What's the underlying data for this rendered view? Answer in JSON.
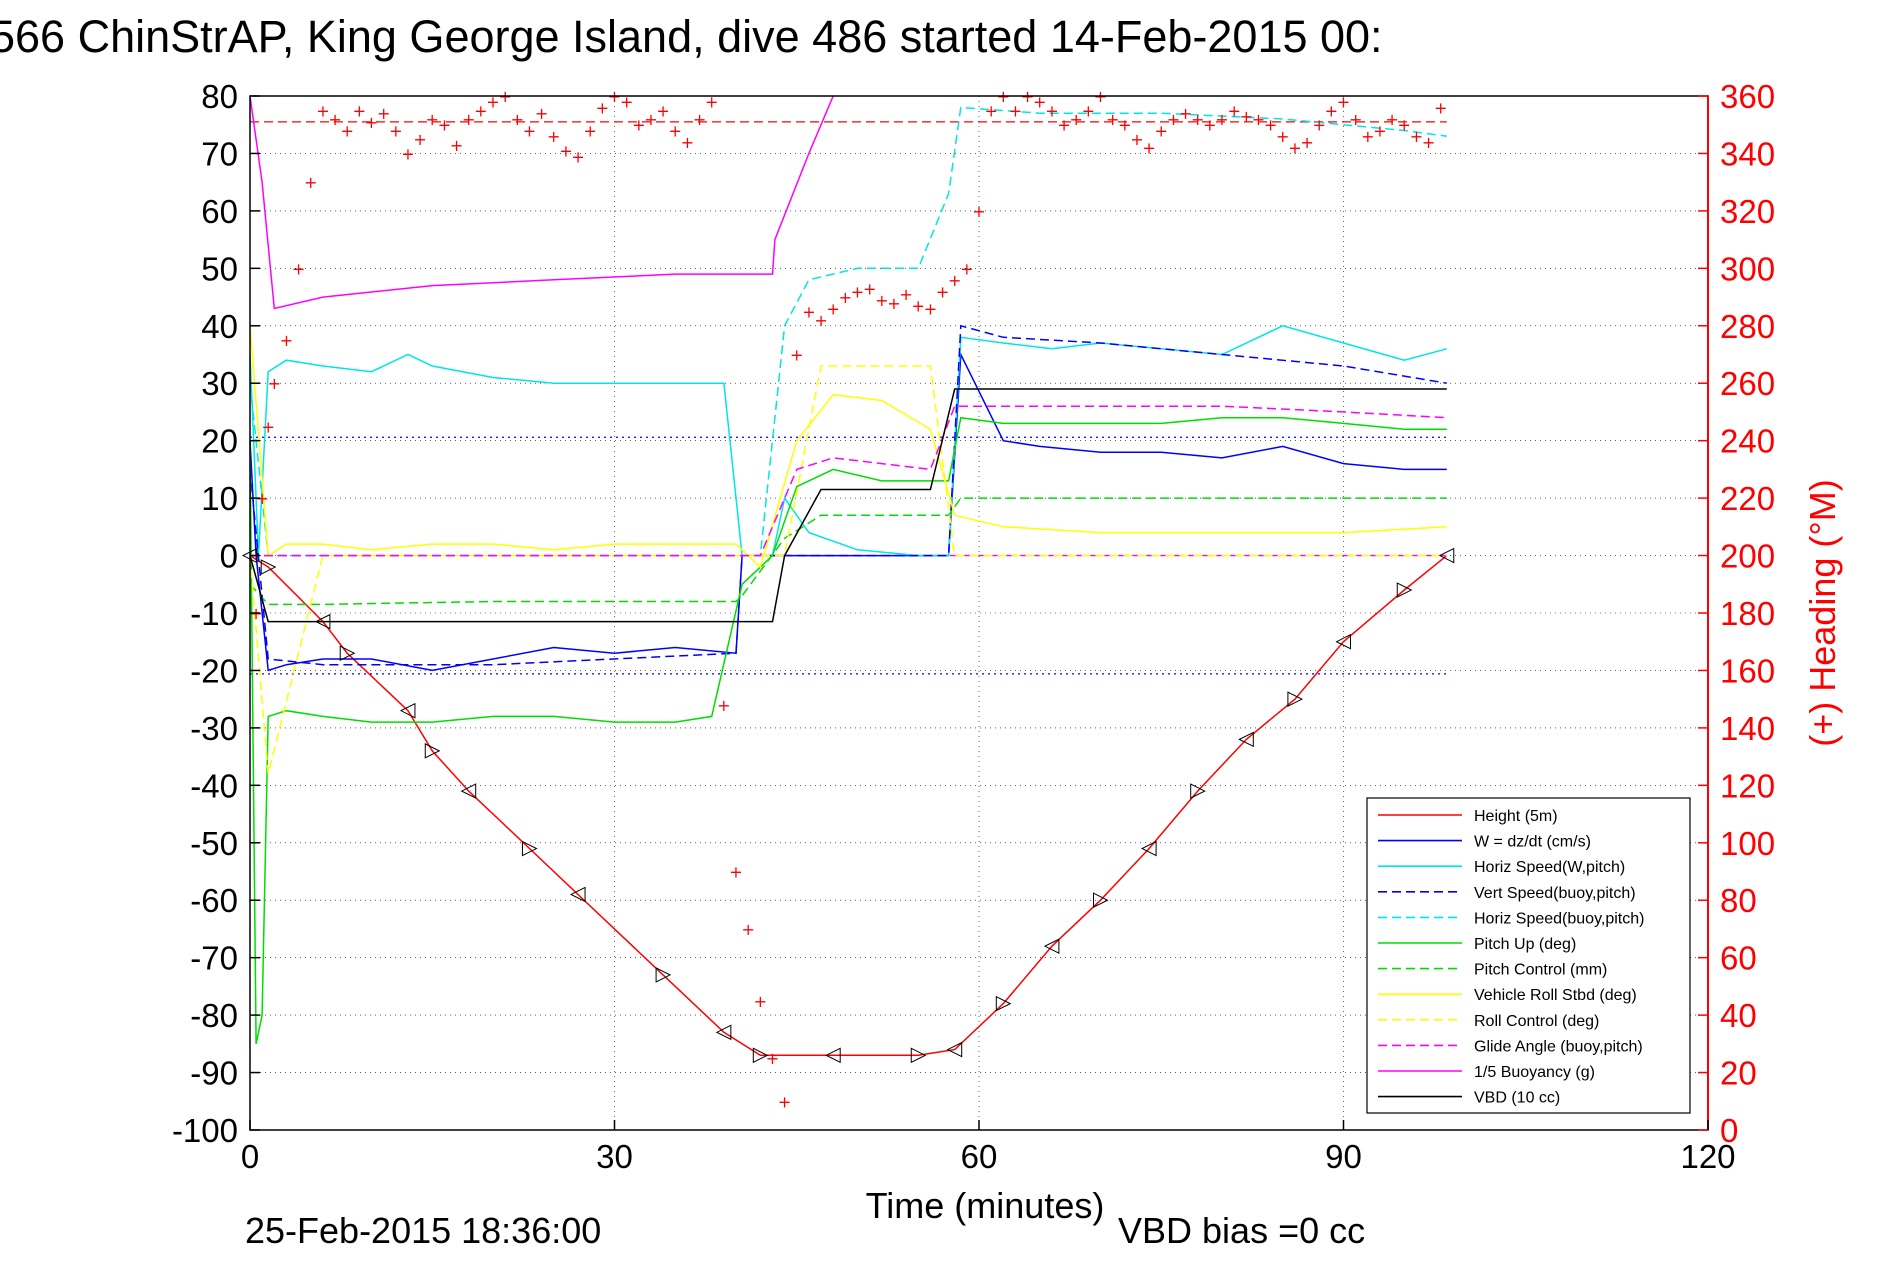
{
  "chart_data": {
    "type": "line",
    "title": "566 ChinStrAP, King George Island, dive 486 started 14-Feb-2015 00:",
    "xlabel": "Time (minutes)",
    "ylabel_left": "",
    "ylabel_right": "(+) Heading (°M)",
    "xlim": [
      0,
      120
    ],
    "ylim_left": [
      -100,
      80
    ],
    "ylim_right": [
      0,
      360
    ],
    "x_ticks": [
      "0",
      "30",
      "60",
      "90",
      "120"
    ],
    "y_ticks_left": [
      "80",
      "70",
      "60",
      "50",
      "40",
      "30",
      "20",
      "10",
      "0",
      "-10",
      "-20",
      "-30",
      "-40",
      "-50",
      "-60",
      "-70",
      "-80",
      "-90",
      "-100"
    ],
    "y_ticks_right": [
      "360",
      "340",
      "320",
      "300",
      "280",
      "260",
      "240",
      "220",
      "200",
      "180",
      "160",
      "140",
      "120",
      "100",
      "80",
      "60",
      "40",
      "20",
      "0"
    ],
    "grid": true,
    "legend_position": "bottom-right",
    "footer_date": "25-Feb-2015 18:36:00",
    "footer_bias": "VBD bias =0 cc",
    "reference_lines": [
      {
        "y": 75.5,
        "color": "#ff0000",
        "style": "dashed"
      },
      {
        "y": 0,
        "color": "#ff00ff",
        "style": "dashed"
      },
      {
        "y": 20.6,
        "color": "#0000ff",
        "style": "dotted"
      },
      {
        "y": -20.6,
        "color": "#0000ff",
        "style": "dotted"
      }
    ],
    "series": [
      {
        "name": "Height (5m)",
        "color": "#ff0000",
        "style": "solid",
        "x": [
          0,
          1.5,
          6,
          8,
          13,
          15,
          18,
          23,
          27,
          34,
          39,
          42,
          48,
          55,
          58,
          62,
          66,
          70,
          74,
          78,
          82,
          86,
          90,
          95,
          98.5
        ],
        "y": [
          0,
          -2,
          -11.5,
          -17,
          -27,
          -34,
          -41,
          -51,
          -59,
          -73,
          -83,
          -87,
          -87,
          -87,
          -86,
          -78,
          -68,
          -60,
          -51,
          -41,
          -32,
          -25,
          -15,
          -6,
          0
        ]
      },
      {
        "name": "W = dz/dt (cm/s)",
        "color": "#0000ff",
        "style": "solid",
        "x": [
          0,
          0.5,
          1.5,
          3,
          6,
          10,
          15,
          20,
          25,
          30,
          35,
          40,
          40.5,
          44,
          48,
          52,
          56,
          57.5,
          58.5,
          62,
          65,
          70,
          75,
          80,
          85,
          90,
          95,
          98.5
        ],
        "y": [
          20,
          0,
          -20,
          -19,
          -18,
          -18,
          -20,
          -18,
          -16,
          -17,
          -16,
          -17,
          0,
          0,
          0,
          0,
          0,
          0,
          35,
          20,
          19,
          18,
          18,
          17,
          19,
          16,
          15,
          15
        ]
      },
      {
        "name": "Horiz Speed(W,pitch)",
        "color": "#00e5e5",
        "style": "solid",
        "x": [
          0,
          0.7,
          1.5,
          3,
          6,
          10,
          13,
          15,
          20,
          25,
          30,
          35,
          39,
          40.5,
          43,
          44,
          46,
          50,
          55,
          57.5,
          58.5,
          62,
          66,
          70,
          75,
          80,
          85,
          90,
          95,
          98.5
        ],
        "y": [
          35,
          0,
          32,
          34,
          33,
          32,
          35,
          33,
          31,
          30,
          30,
          30,
          30,
          0,
          0,
          10,
          4,
          1,
          0,
          0,
          38,
          37,
          36,
          37,
          36,
          35,
          40,
          37,
          34,
          36
        ]
      },
      {
        "name": "Vert Speed(buoy,pitch)",
        "color": "#0000ff",
        "style": "dashed",
        "x": [
          0,
          1.5,
          6,
          20,
          40,
          40.5,
          44,
          50,
          56,
          57.5,
          58.5,
          62,
          70,
          80,
          90,
          98.5
        ],
        "y": [
          15,
          -18,
          -19,
          -19,
          -17,
          0,
          0,
          0,
          0,
          0,
          40,
          38,
          37,
          35,
          33,
          30
        ]
      },
      {
        "name": "Horiz Speed(buoy,pitch)",
        "color": "#00e5e5",
        "style": "dashed",
        "x": [
          0,
          1.5,
          6,
          40,
          42,
          44,
          46,
          50,
          55,
          57.5,
          58.5,
          65,
          75,
          85,
          95,
          98.5
        ],
        "y": [
          30,
          0,
          0,
          0,
          0,
          40,
          48,
          50,
          50,
          63,
          78,
          77,
          77,
          76,
          74,
          73
        ]
      },
      {
        "name": "Pitch Up (deg)",
        "color": "#00dd00",
        "style": "solid",
        "x": [
          0,
          0.5,
          1,
          1.5,
          3,
          6,
          10,
          15,
          20,
          25,
          30,
          35,
          38,
          40.5,
          43,
          45,
          48,
          52,
          56,
          57.5,
          58.5,
          62,
          66,
          70,
          75,
          80,
          85,
          90,
          95,
          98.5
        ],
        "y": [
          20,
          -85,
          -80,
          -28,
          -27,
          -28,
          -29,
          -29,
          -28,
          -28,
          -29,
          -29,
          -28,
          -5,
          0,
          12,
          15,
          13,
          13,
          13,
          24,
          23,
          23,
          23,
          23,
          24,
          24,
          23,
          22,
          22
        ]
      },
      {
        "name": "Pitch Control (mm)",
        "color": "#00dd00",
        "style": "dashed",
        "x": [
          0,
          1.5,
          6,
          20,
          40,
          40.5,
          44,
          47,
          56,
          57.5,
          58.5,
          65,
          80,
          98.5
        ],
        "y": [
          -5,
          -8.5,
          -8.5,
          -8,
          -8,
          -7,
          3,
          7,
          7,
          7,
          10,
          10,
          10,
          10
        ]
      },
      {
        "name": "Vehicle Roll Stbd (deg)",
        "color": "#ffff00",
        "style": "solid",
        "x": [
          0,
          1.5,
          3,
          6,
          10,
          15,
          20,
          25,
          30,
          35,
          40,
          42,
          45,
          48,
          52,
          56,
          58,
          62,
          70,
          80,
          90,
          98.5
        ],
        "y": [
          40,
          0,
          2,
          2,
          1,
          2,
          2,
          1,
          2,
          2,
          2,
          -2,
          20,
          28,
          27,
          22,
          7,
          5,
          4,
          4,
          4,
          5
        ]
      },
      {
        "name": "Roll Control (deg)",
        "color": "#ffff00",
        "style": "dashed",
        "x": [
          0,
          1.5,
          6,
          10,
          20,
          30,
          40,
          44,
          47,
          56,
          58,
          62,
          70,
          80,
          90,
          98.5
        ],
        "y": [
          0,
          -38,
          0,
          0,
          0,
          0,
          0,
          0,
          33,
          33,
          0,
          0,
          0,
          0,
          0,
          0
        ]
      },
      {
        "name": "Glide Angle (buoy,pitch)",
        "color": "#ff00ff",
        "style": "dashed",
        "x": [
          0,
          1.5,
          40,
          42,
          45,
          48,
          52,
          56,
          58,
          62,
          70,
          80,
          90,
          98.5
        ],
        "y": [
          0,
          0,
          0,
          0,
          15,
          17,
          16,
          15,
          26,
          26,
          26,
          26,
          25,
          24
        ]
      },
      {
        "name": "1/5 Buoyancy (g)",
        "color": "#ff00ff",
        "style": "solid",
        "x": [
          0,
          1,
          2,
          6,
          15,
          25,
          35,
          43,
          43.2,
          46,
          48
        ],
        "y": [
          80,
          65,
          43,
          45,
          47,
          48,
          49,
          49,
          55,
          70,
          80
        ]
      },
      {
        "name": "VBD (10 cc)",
        "color": "#000000",
        "style": "solid",
        "x": [
          0,
          1.5,
          6,
          20,
          30,
          43,
          44,
          47,
          56,
          58,
          65,
          80,
          98.5
        ],
        "y": [
          0,
          -11.5,
          -11.5,
          -11.5,
          -11.5,
          -11.5,
          0,
          11.5,
          11.5,
          29,
          29,
          29,
          29
        ]
      }
    ],
    "heading_points": {
      "name": "Heading (°M)",
      "color": "#ff0000",
      "marker": "+",
      "axis": "right",
      "x": [
        0.5,
        1,
        1.5,
        2,
        3,
        4,
        5,
        6,
        7,
        8,
        9,
        10,
        11,
        12,
        13,
        14,
        15,
        16,
        17,
        18,
        19,
        20,
        21,
        22,
        23,
        24,
        25,
        26,
        27,
        28,
        29,
        30,
        31,
        32,
        33,
        34,
        35,
        36,
        37,
        38,
        39,
        40,
        41,
        42,
        43,
        44,
        45,
        46,
        47,
        48,
        49,
        50,
        51,
        52,
        53,
        54,
        55,
        56,
        57,
        58,
        59,
        60,
        61,
        62,
        63,
        64,
        65,
        66,
        67,
        68,
        69,
        70,
        71,
        72,
        73,
        74,
        75,
        76,
        77,
        78,
        79,
        80,
        81,
        82,
        83,
        84,
        85,
        86,
        87,
        88,
        89,
        90,
        91,
        92,
        93,
        94,
        95,
        96,
        97,
        98
      ],
      "y": [
        180,
        220,
        245,
        260,
        275,
        300,
        330,
        355,
        352,
        348,
        355,
        351,
        354,
        348,
        340,
        345,
        352,
        350,
        343,
        352,
        355,
        358,
        360,
        352,
        348,
        354,
        346,
        341,
        339,
        348,
        356,
        360,
        358,
        350,
        352,
        355,
        348,
        344,
        352,
        358,
        148,
        90,
        70,
        45,
        25,
        10,
        270,
        285,
        282,
        286,
        290,
        292,
        293,
        289,
        288,
        291,
        287,
        286,
        292,
        296,
        300,
        320,
        355,
        360,
        355,
        360,
        358,
        355,
        350,
        352,
        355,
        360,
        352,
        350,
        345,
        342,
        348,
        352,
        354,
        352,
        350,
        352,
        355,
        353,
        352,
        350,
        346,
        342,
        344,
        350,
        355,
        358,
        352,
        346,
        348,
        352,
        350,
        346,
        344,
        356
      ]
    }
  }
}
